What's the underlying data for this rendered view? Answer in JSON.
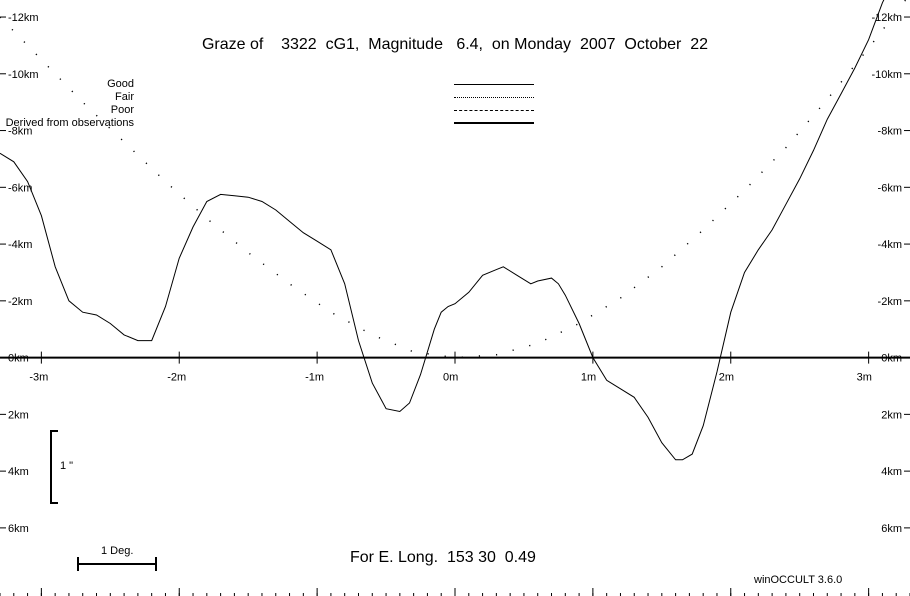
{
  "title": "Graze of    3322  cG1,  Magnitude   6.4,  on Monday  2007  October  22",
  "footer": "For E. Long.  153 30  0.49",
  "credit": "winOCCULT 3.6.0",
  "legend": [
    {
      "label": "Good",
      "style": "solid"
    },
    {
      "label": "Fair",
      "style": "dotted"
    },
    {
      "label": "Poor",
      "style": "dashed"
    },
    {
      "label": "Derived from observations",
      "style": "thick"
    }
  ],
  "scale_bars": {
    "vertical_label": "1 \"",
    "horizontal_label": "1 Deg."
  },
  "chart_data": {
    "type": "line",
    "title": "Graze of 3322 cG1, Magnitude 6.4, on Monday 2007 October 22",
    "xlabel": "",
    "ylabel": "",
    "xlim": [
      -3.3,
      3.3
    ],
    "ylim": [
      -12.6,
      8.4
    ],
    "x_ticks": [
      -3,
      -2,
      -1,
      0,
      1,
      2,
      3
    ],
    "x_tick_labels": [
      "-3m",
      "-2m",
      "-1m",
      "0m",
      "1m",
      "2m",
      "3m"
    ],
    "y_ticks": [
      -12,
      -10,
      -8,
      -6,
      -4,
      -2,
      0,
      2,
      4,
      6
    ],
    "y_tick_labels": [
      "-12km",
      "-10km",
      "-8km",
      "-6km",
      "-4km",
      "-2km",
      "0km",
      "2km",
      "4km",
      "6km"
    ],
    "series": [
      {
        "style": "solid",
        "x": [
          -3.3,
          -3.2,
          -3.1,
          -3.0,
          -2.9,
          -2.8,
          -2.7,
          -2.6,
          -2.5,
          -2.4,
          -2.3,
          -2.2,
          -2.1,
          -2.0,
          -1.9,
          -1.8,
          -1.7,
          -1.6,
          -1.5,
          -1.4,
          -1.3,
          -1.2,
          -1.1,
          -1.0,
          -0.9,
          -0.8,
          -0.7,
          -0.6,
          -0.5,
          -0.4,
          -0.33,
          -0.25,
          -0.15,
          -0.1,
          -0.05,
          0.0,
          0.1,
          0.2,
          0.3,
          0.35,
          0.45,
          0.55,
          0.6,
          0.7,
          0.75,
          0.8,
          0.9,
          1.0,
          1.1,
          1.2,
          1.3,
          1.4,
          1.5,
          1.6,
          1.65,
          1.72,
          1.8,
          1.9,
          2.0,
          2.1,
          2.2,
          2.3,
          2.4,
          2.5,
          2.6,
          2.7,
          2.8,
          2.9,
          3.0,
          3.1,
          3.2
        ],
        "y": [
          -7.2,
          -6.9,
          -6.2,
          -5.0,
          -3.2,
          -2.0,
          -1.6,
          -1.5,
          -1.2,
          -0.8,
          -0.6,
          -0.6,
          -1.8,
          -3.5,
          -4.6,
          -5.5,
          -5.75,
          -5.7,
          -5.65,
          -5.5,
          -5.2,
          -4.8,
          -4.4,
          -4.1,
          -3.8,
          -2.6,
          -0.6,
          0.9,
          1.8,
          1.9,
          1.6,
          0.6,
          -1.0,
          -1.6,
          -1.8,
          -1.9,
          -2.3,
          -2.9,
          -3.1,
          -3.2,
          -2.9,
          -2.6,
          -2.7,
          -2.8,
          -2.6,
          -2.2,
          -1.2,
          0.0,
          0.8,
          1.1,
          1.4,
          2.1,
          3.0,
          3.6,
          3.6,
          3.4,
          2.4,
          0.5,
          -1.6,
          -3.0,
          -3.8,
          -4.5,
          -5.4,
          -6.3,
          -7.3,
          -8.4,
          -9.3,
          -10.2,
          -11.2,
          -12.5,
          -13.5
        ]
      },
      {
        "style": "dotted",
        "x": [
          -3.3,
          -3.0,
          -2.7,
          -2.4,
          -2.1,
          -1.8,
          -1.5,
          -1.2,
          -0.9,
          -0.6,
          -0.3,
          0.0,
          0.3,
          0.6,
          0.9,
          1.2,
          1.5,
          1.8,
          2.1,
          2.4,
          2.7,
          3.0,
          3.3
        ],
        "y": [
          -12.0,
          -10.5,
          -9.0,
          -7.6,
          -6.2,
          -4.9,
          -3.7,
          -2.6,
          -1.6,
          -0.8,
          -0.2,
          0.0,
          -0.1,
          -0.5,
          -1.2,
          -2.1,
          -3.2,
          -4.5,
          -5.9,
          -7.4,
          -9.1,
          -10.9,
          -12.8
        ]
      }
    ]
  }
}
